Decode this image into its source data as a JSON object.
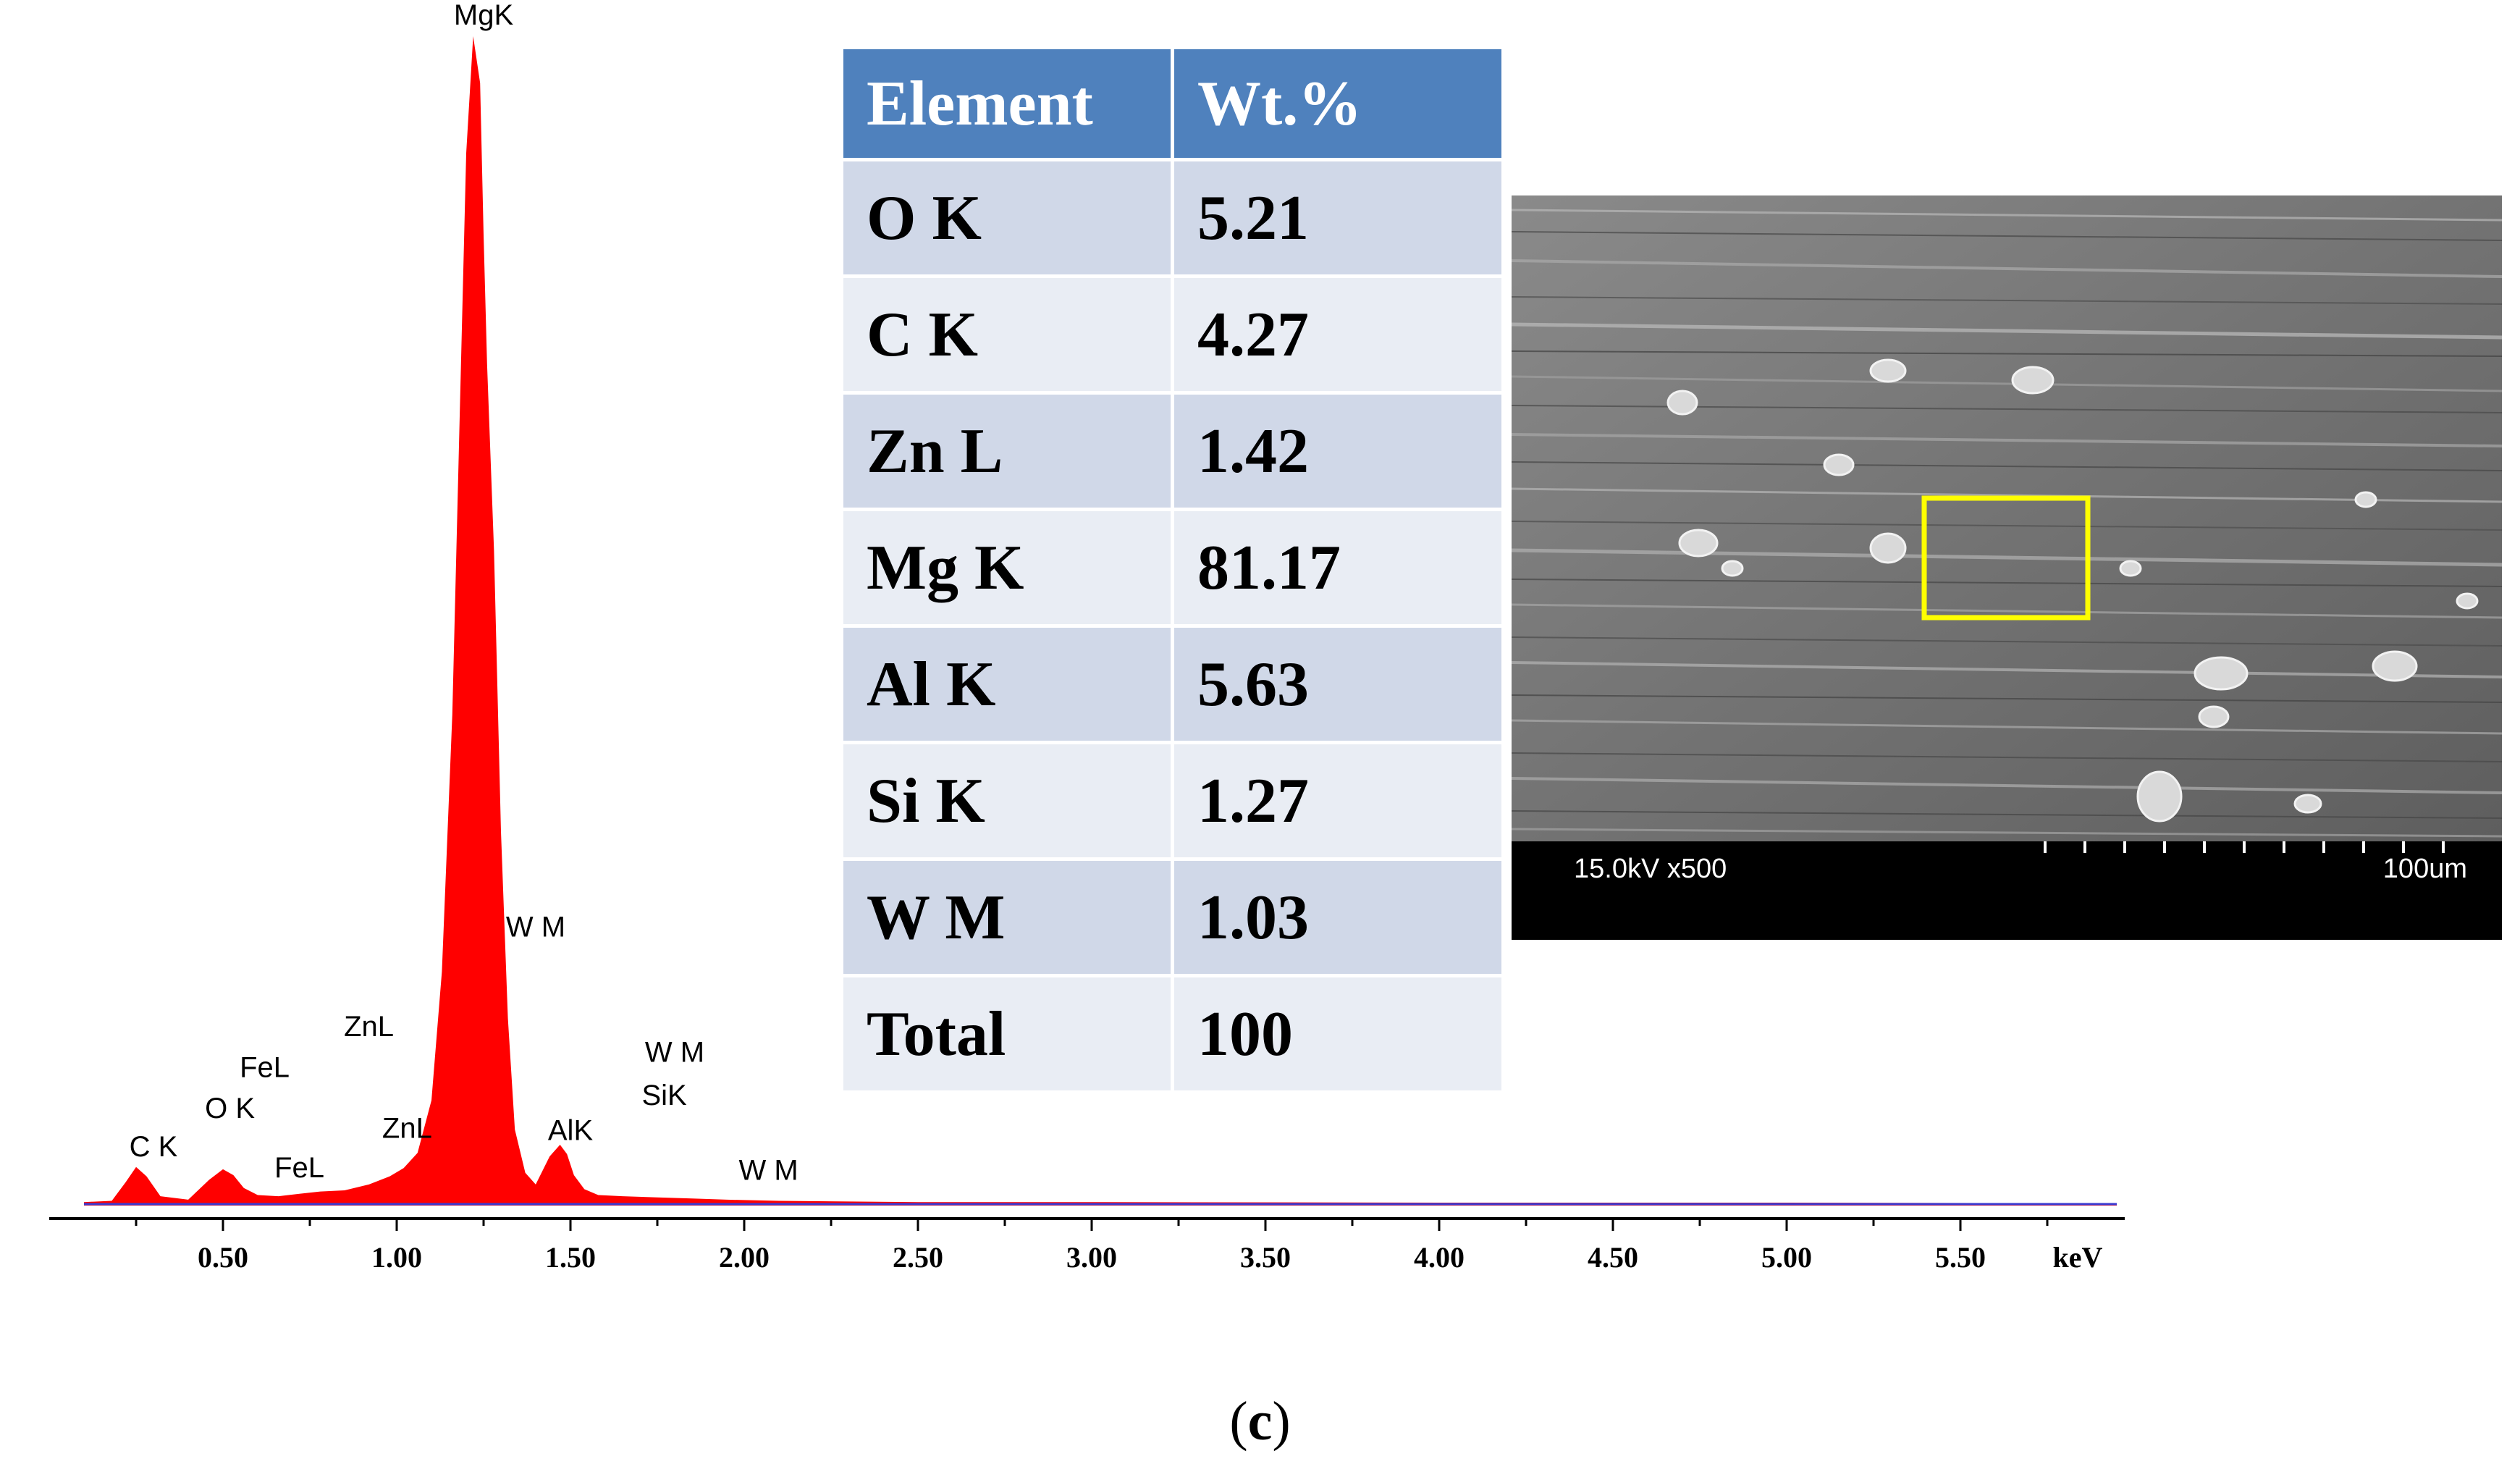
{
  "chart_data": {
    "type": "area",
    "xlabel": "keV",
    "x_ticks": [
      "0.50",
      "1.00",
      "1.50",
      "2.00",
      "2.50",
      "3.00",
      "3.50",
      "4.00",
      "4.50",
      "5.00",
      "5.50"
    ],
    "xlim": [
      0.0,
      5.95
    ],
    "color": "#ff0000",
    "spectrum": {
      "x": [
        0.1,
        0.18,
        0.22,
        0.25,
        0.28,
        0.32,
        0.4,
        0.46,
        0.5,
        0.53,
        0.56,
        0.6,
        0.66,
        0.72,
        0.78,
        0.85,
        0.92,
        0.98,
        1.02,
        1.06,
        1.1,
        1.13,
        1.16,
        1.18,
        1.2,
        1.22,
        1.24,
        1.25,
        1.26,
        1.28,
        1.3,
        1.32,
        1.34,
        1.37,
        1.4,
        1.44,
        1.47,
        1.49,
        1.51,
        1.54,
        1.58,
        1.65,
        1.75,
        1.85,
        1.95,
        2.1,
        2.5,
        3.0,
        4.0,
        5.0,
        5.95
      ],
      "y": [
        0.3,
        0.4,
        2.0,
        3.3,
        2.5,
        0.8,
        0.5,
        2.2,
        3.1,
        2.6,
        1.5,
        0.9,
        0.8,
        1.0,
        1.2,
        1.3,
        1.8,
        2.5,
        3.2,
        4.5,
        9.0,
        20.0,
        42.0,
        66.0,
        90.0,
        100.0,
        96.0,
        83.0,
        72.0,
        56.0,
        32.0,
        16.0,
        6.5,
        2.8,
        1.8,
        4.2,
        5.2,
        4.4,
        2.6,
        1.4,
        0.9,
        0.8,
        0.7,
        0.6,
        0.5,
        0.4,
        0.3,
        0.3,
        0.25,
        0.25,
        0.2
      ]
    },
    "peak_labels": [
      {
        "text": "MgK",
        "x": 1.25,
        "y": 101
      },
      {
        "text": "W M",
        "x": 1.4,
        "y": 23
      },
      {
        "text": "ZnL",
        "x": 0.92,
        "y": 14.5
      },
      {
        "text": "FeL",
        "x": 0.62,
        "y": 11
      },
      {
        "text": "O K",
        "x": 0.52,
        "y": 7.5
      },
      {
        "text": "C K",
        "x": 0.3,
        "y": 4.2
      },
      {
        "text": "ZnL",
        "x": 1.03,
        "y": 5.8
      },
      {
        "text": "FeL",
        "x": 0.72,
        "y": 2.4
      },
      {
        "text": "AlK",
        "x": 1.5,
        "y": 5.6
      },
      {
        "text": "W M",
        "x": 1.8,
        "y": 12.3
      },
      {
        "text": "SiK",
        "x": 1.77,
        "y": 8.6
      },
      {
        "text": "W M",
        "x": 2.07,
        "y": 2.2
      }
    ]
  },
  "table": {
    "headers": [
      "Element",
      "Wt.%"
    ],
    "rows": [
      {
        "element": "O K",
        "wt": "5.21"
      },
      {
        "element": "C K",
        "wt": "4.27"
      },
      {
        "element": "Zn L",
        "wt": "1.42"
      },
      {
        "element": "Mg K",
        "wt": "81.17"
      },
      {
        "element": "Al K",
        "wt": "5.63"
      },
      {
        "element": "Si K",
        "wt": "1.27"
      },
      {
        "element": "W M",
        "wt": "1.03"
      },
      {
        "element": "Total",
        "wt": "100"
      }
    ]
  },
  "sem": {
    "voltage_magnification": "15.0kV x500",
    "scale_bar": "100um",
    "highlight_color": "#ffff00"
  },
  "caption": {
    "open": "(",
    "letter": "c",
    "close": ")"
  }
}
